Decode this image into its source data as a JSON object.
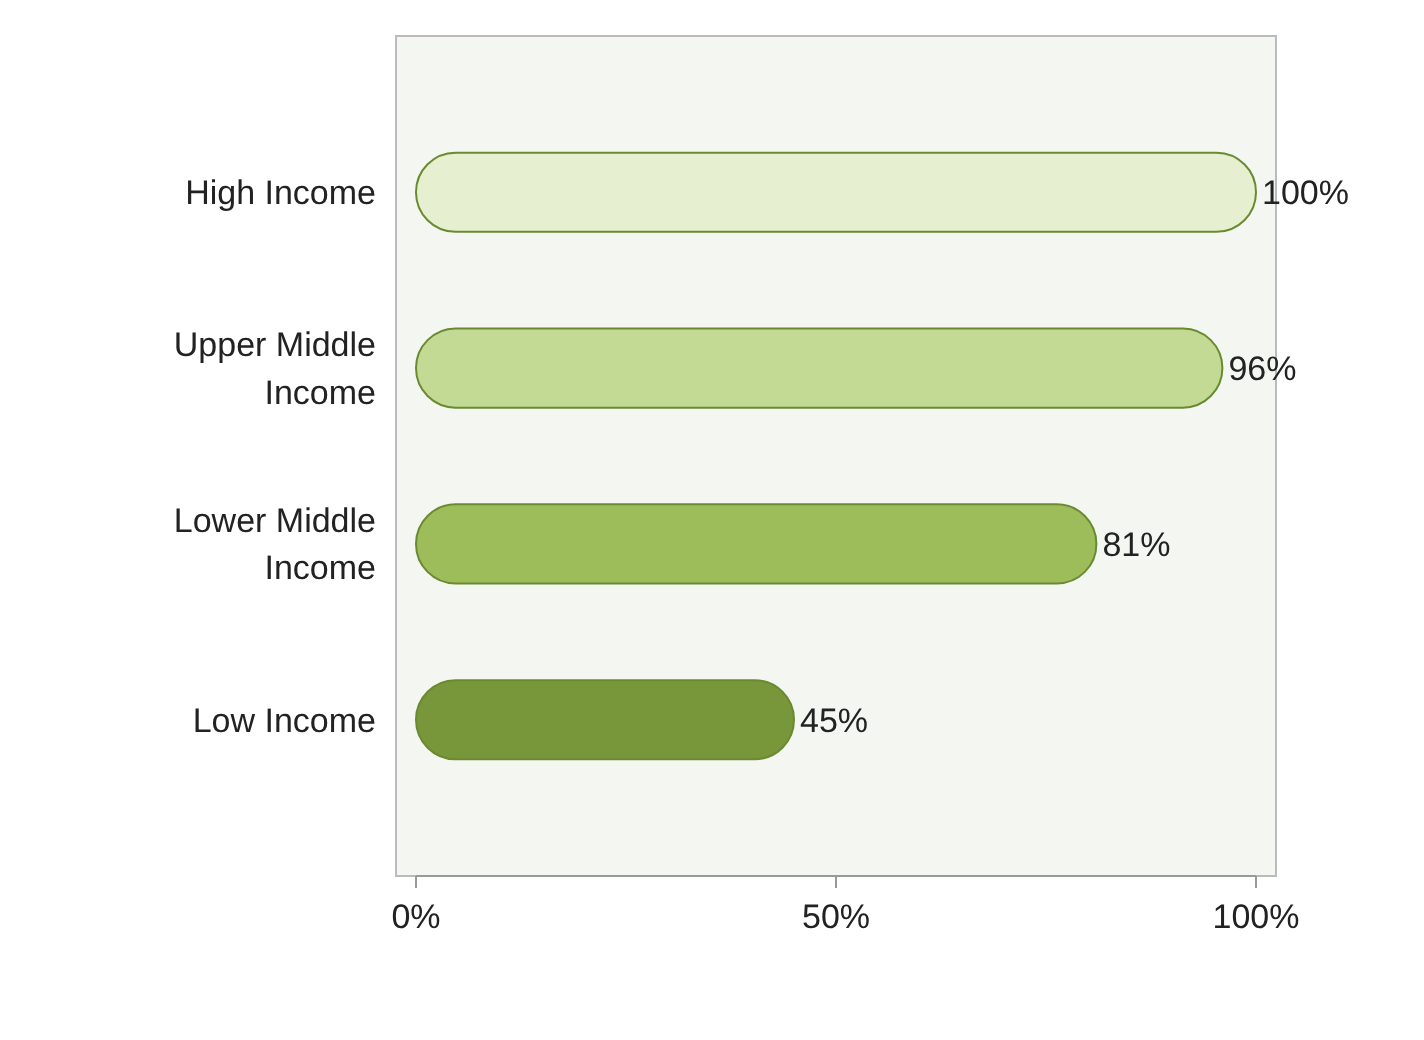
{
  "chart_data": {
    "type": "bar",
    "orientation": "horizontal",
    "categories": [
      "High Income",
      "Upper Middle Income",
      "Lower Middle Income",
      "Low Income"
    ],
    "values": [
      100,
      96,
      81,
      45
    ],
    "colors": [
      "#e6f0d0",
      "#c3da94",
      "#9dbd5a",
      "#78973a"
    ],
    "value_labels": [
      "100%",
      "96%",
      "81%",
      "45%"
    ],
    "xlim": [
      0,
      100
    ],
    "xticks": [
      {
        "value": 0,
        "label": "0%"
      },
      {
        "value": 50,
        "label": "50%"
      },
      {
        "value": 100,
        "label": "100%"
      }
    ],
    "grid": false
  }
}
